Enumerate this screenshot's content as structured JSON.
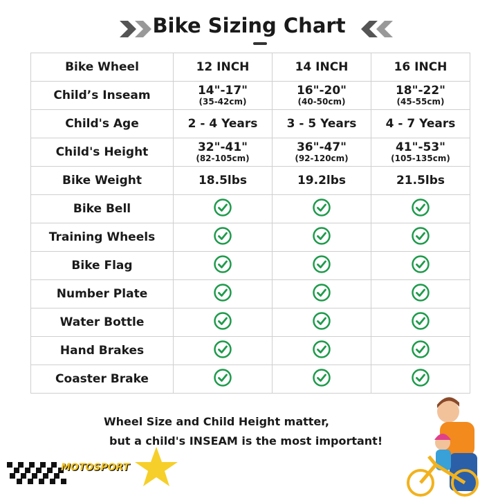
{
  "header": {
    "title": "Bike Sizing Chart"
  },
  "table": {
    "columns": [
      "Bike Wheel",
      "12 INCH",
      "14 INCH",
      "16 INCH"
    ],
    "rows": [
      {
        "label": "Child’s Inseam",
        "cells": [
          {
            "main": "14\"-17\"",
            "sub": "(35-42cm)"
          },
          {
            "main": "16\"-20\"",
            "sub": "(40-50cm)"
          },
          {
            "main": "18\"-22\"",
            "sub": "(45-55cm)"
          }
        ]
      },
      {
        "label": "Child's Age",
        "cells": [
          {
            "main": "2 - 4 Years"
          },
          {
            "main": "3 - 5 Years"
          },
          {
            "main": "4 - 7 Years"
          }
        ]
      },
      {
        "label": "Child's Height",
        "cells": [
          {
            "main": "32\"-41\"",
            "sub": "(82-105cm)"
          },
          {
            "main": "36\"-47\"",
            "sub": "(92-120cm)"
          },
          {
            "main": "41\"-53\"",
            "sub": "(105-135cm)"
          }
        ]
      },
      {
        "label": "Bike Weight",
        "cells": [
          {
            "main": "18.5lbs"
          },
          {
            "main": "19.2lbs"
          },
          {
            "main": "21.5lbs"
          }
        ]
      }
    ],
    "feature_rows": [
      "Bike Bell",
      "Training Wheels",
      "Bike Flag",
      "Number Plate",
      "Water Bottle",
      "Hand Brakes",
      "Coaster Brake"
    ]
  },
  "footer": {
    "lines": [
      "Wheel Size and Child Height matter,",
      "but a child's INSEAM is the most important!"
    ],
    "logo": "MOTOSPORT"
  }
}
